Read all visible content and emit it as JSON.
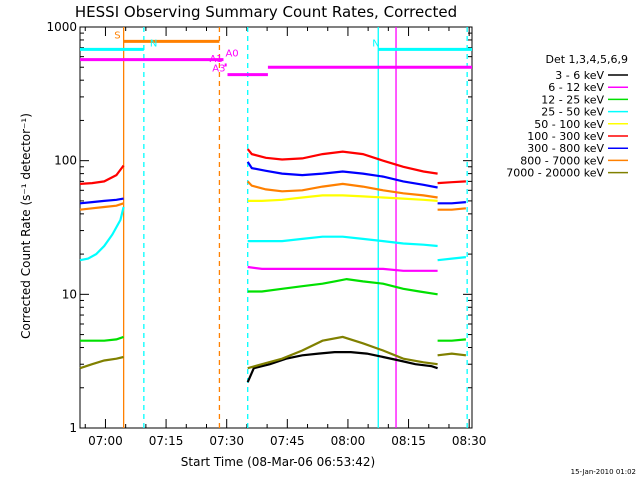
{
  "chart_data": {
    "type": "line",
    "title": "HESSI Observing Summary Count Rates, Corrected",
    "xlabel": "Start Time (08-Mar-06 06:53:42)",
    "ylabel": "Corrected Count Rate (s⁻¹ detector⁻¹)",
    "x_unit": "minutes after 06:53:42",
    "xlim": [
      0,
      97
    ],
    "ylim": [
      1,
      1000
    ],
    "yscale": "log",
    "grid": false,
    "x_ticks": [
      "07:00",
      "07:15",
      "07:30",
      "07:45",
      "08:00",
      "08:15",
      "08:30"
    ],
    "y_ticks": [
      "1",
      "10",
      "100",
      "1000"
    ],
    "legend_title": "Det 1,3,4,5,6,9",
    "legend_position": "right",
    "footer": "15-Jan-2010 01:02",
    "series": [
      {
        "name": "3 - 6 keV",
        "color": "#000000",
        "segments": [
          {
            "x": [
              41.5,
              43,
              47,
              51,
              55,
              59,
              63,
              67,
              71,
              75,
              79,
              83,
              87,
              88.5
            ],
            "y": [
              2.2,
              2.8,
              3.0,
              3.3,
              3.5,
              3.6,
              3.7,
              3.7,
              3.6,
              3.4,
              3.2,
              3.0,
              2.9,
              2.8
            ]
          }
        ]
      },
      {
        "name": "6 - 12 keV",
        "color": "#ff00ff",
        "segments": [
          {
            "x": [
              41.5,
              45,
              50,
              55,
              60,
              65,
              70,
              75,
              80,
              85,
              88.5
            ],
            "y": [
              16,
              15.5,
              15.5,
              15.5,
              15.5,
              15.5,
              15.5,
              15.5,
              15,
              15,
              15
            ]
          }
        ]
      },
      {
        "name": "12 - 25 keV",
        "color": "#00e000",
        "segments": [
          {
            "x": [
              0,
              3,
              6,
              9,
              10.8
            ],
            "y": [
              4.5,
              4.5,
              4.5,
              4.6,
              4.8
            ]
          },
          {
            "x": [
              41.5,
              45,
              50,
              55,
              60,
              63,
              66,
              70,
              75,
              80,
              84,
              88.5
            ],
            "y": [
              10.5,
              10.5,
              11,
              11.5,
              12,
              12.5,
              13,
              12.5,
              12,
              11,
              10.5,
              10
            ]
          },
          {
            "x": [
              88.5,
              92,
              95.5
            ],
            "y": [
              4.5,
              4.5,
              4.6
            ]
          }
        ]
      },
      {
        "name": "25 - 50 keV",
        "color": "#00ffff",
        "segments": [
          {
            "x": [
              0,
              2,
              4,
              6,
              8,
              10,
              10.8
            ],
            "y": [
              18,
              18.5,
              20,
              23,
              28,
              36,
              45
            ]
          },
          {
            "x": [
              41.5,
              45,
              50,
              55,
              60,
              65,
              70,
              75,
              80,
              85,
              88.5
            ],
            "y": [
              25,
              25,
              25,
              26,
              27,
              27,
              26,
              25,
              24,
              23.5,
              23
            ]
          },
          {
            "x": [
              88.5,
              92,
              95.5
            ],
            "y": [
              18,
              18.5,
              19
            ]
          }
        ]
      },
      {
        "name": "50 - 100 keV",
        "color": "#ffff00",
        "segments": [
          {
            "x": [
              41.5,
              45,
              50,
              55,
              60,
              65,
              70,
              75,
              80,
              85,
              88.5
            ],
            "y": [
              50,
              50,
              51,
              53,
              55,
              55,
              54,
              53,
              52,
              51,
              50
            ]
          }
        ]
      },
      {
        "name": "100 - 300 keV",
        "color": "#ff0000",
        "segments": [
          {
            "x": [
              0,
              3,
              6,
              9,
              10.8
            ],
            "y": [
              67,
              68,
              70,
              78,
              92
            ]
          },
          {
            "x": [
              41.5,
              42.5,
              46,
              50,
              55,
              60,
              65,
              70,
              75,
              80,
              85,
              88.5
            ],
            "y": [
              122,
              112,
              105,
              102,
              104,
              112,
              117,
              112,
              100,
              90,
              83,
              80
            ]
          },
          {
            "x": [
              88.5,
              92,
              95.5
            ],
            "y": [
              68,
              69,
              70
            ]
          }
        ]
      },
      {
        "name": "300 - 800 keV",
        "color": "#0000ff",
        "segments": [
          {
            "x": [
              0,
              3,
              6,
              9,
              10.8
            ],
            "y": [
              48,
              49,
              50,
              51,
              52
            ]
          },
          {
            "x": [
              41.5,
              42.5,
              46,
              50,
              55,
              60,
              65,
              70,
              75,
              80,
              85,
              88.5
            ],
            "y": [
              98,
              88,
              84,
              80,
              78,
              80,
              83,
              80,
              76,
              70,
              66,
              63
            ]
          },
          {
            "x": [
              88.5,
              92,
              95.5
            ],
            "y": [
              48,
              48,
              49
            ]
          }
        ]
      },
      {
        "name": "800 - 7000 keV",
        "color": "#ff8000",
        "segments": [
          {
            "x": [
              0,
              3,
              6,
              9,
              10.8
            ],
            "y": [
              43,
              44,
              45,
              46,
              48
            ]
          },
          {
            "x": [
              41.5,
              42.5,
              46,
              50,
              55,
              60,
              65,
              70,
              75,
              80,
              85,
              88.5
            ],
            "y": [
              70,
              65,
              61,
              59,
              60,
              64,
              67,
              64,
              60,
              57,
              55,
              53
            ]
          },
          {
            "x": [
              88.5,
              92,
              95.5
            ],
            "y": [
              43,
              43,
              44
            ]
          }
        ]
      },
      {
        "name": "7000 - 20000 keV",
        "color": "#808000",
        "segments": [
          {
            "x": [
              0,
              3,
              6,
              9,
              10.8
            ],
            "y": [
              2.8,
              3,
              3.2,
              3.3,
              3.4
            ]
          },
          {
            "x": [
              41.5,
              45,
              50,
              55,
              60,
              65,
              70,
              75,
              80,
              85,
              88.5
            ],
            "y": [
              2.8,
              3.0,
              3.3,
              3.8,
              4.5,
              4.8,
              4.3,
              3.8,
              3.3,
              3.1,
              3.0
            ]
          },
          {
            "x": [
              88.5,
              92,
              95.5
            ],
            "y": [
              3.5,
              3.6,
              3.5
            ]
          }
        ]
      }
    ],
    "vertical_lines": [
      {
        "x": 10.8,
        "color": "#ff8000",
        "style": "solid"
      },
      {
        "x": 15.8,
        "color": "#00ffff",
        "style": "dashed"
      },
      {
        "x": 34.5,
        "color": "#ff8000",
        "style": "dashed"
      },
      {
        "x": 41.5,
        "color": "#00ffff",
        "style": "dashed"
      },
      {
        "x": 73.8,
        "color": "#00ffff",
        "style": "solid"
      },
      {
        "x": 78.2,
        "color": "#ff00ff",
        "style": "solid"
      },
      {
        "x": 95.8,
        "color": "#00ffff",
        "style": "dashed"
      }
    ],
    "flag_bars": [
      {
        "label": "S",
        "color": "#ff8000",
        "x_start": 10.8,
        "x_end": 34.5,
        "y": 780
      },
      {
        "label": "N",
        "color": "#00ffff",
        "x_start": 0,
        "x_end": 15.8,
        "y": 680
      },
      {
        "label": "N",
        "color": "#00ffff",
        "x_start": 73.8,
        "x_end": 97,
        "y": 680
      },
      {
        "label": "A0",
        "color": "#ff00ff",
        "x_start": 0,
        "x_end": 35.5,
        "y": 570
      },
      {
        "label": "A1",
        "color": "#ff00ff",
        "x_start": 35.8,
        "x_end": 36.2,
        "y": 520
      },
      {
        "label": "A3",
        "color": "#ff00ff",
        "x_start": 36.5,
        "x_end": 46.5,
        "y": 440
      },
      {
        "label": "",
        "color": "#ff00ff",
        "x_start": 46.5,
        "x_end": 97,
        "y": 500
      }
    ]
  }
}
